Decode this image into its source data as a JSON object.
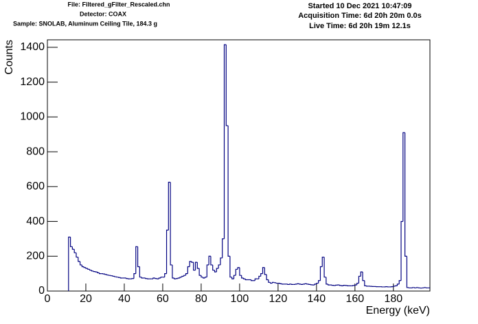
{
  "chart_data": {
    "type": "histogram",
    "header_left": [
      "File: Filtered_gFilter_Rescaled.chn",
      "Detector: COAX",
      "Sample: SNOLAB, Aluminum Ceiling Tile, 184.3 g"
    ],
    "header_right": [
      "Started 10 Dec 2021 10:47:09",
      "Acquisition Time: 6d 20h 20m 0.0s",
      "Live Time: 6d 20h 19m 12.1s"
    ],
    "xlabel": "Energy (keV)",
    "ylabel": "Counts",
    "color": "#000080",
    "xlim": [
      0,
      199
    ],
    "ylim": [
      0,
      1443
    ],
    "xticks": [
      0,
      20,
      40,
      60,
      80,
      100,
      120,
      140,
      160,
      180
    ],
    "yticks": [
      0,
      200,
      400,
      600,
      800,
      1000,
      1200,
      1400
    ],
    "bins": [
      11,
      12,
      13,
      14,
      15,
      16,
      17,
      18,
      19,
      20,
      21,
      22,
      23,
      24,
      25,
      26,
      27,
      28,
      29,
      30,
      31,
      32,
      33,
      34,
      35,
      36,
      37,
      38,
      39,
      40,
      41,
      42,
      43,
      44,
      45,
      46,
      47,
      48,
      49,
      50,
      51,
      52,
      53,
      54,
      55,
      56,
      57,
      58,
      59,
      60,
      61,
      62,
      63,
      64,
      65,
      66,
      67,
      68,
      69,
      70,
      71,
      72,
      73,
      74,
      75,
      76,
      77,
      78,
      79,
      80,
      81,
      82,
      83,
      84,
      85,
      86,
      87,
      88,
      89,
      90,
      91,
      92,
      93,
      94,
      95,
      96,
      97,
      98,
      99,
      100,
      101,
      102,
      103,
      104,
      105,
      106,
      107,
      108,
      109,
      110,
      111,
      112,
      113,
      114,
      115,
      116,
      117,
      118,
      119,
      120,
      121,
      122,
      123,
      124,
      125,
      126,
      127,
      128,
      129,
      130,
      131,
      132,
      133,
      134,
      135,
      136,
      137,
      138,
      139,
      140,
      141,
      142,
      143,
      144,
      145,
      146,
      147,
      148,
      149,
      150,
      151,
      152,
      153,
      154,
      155,
      156,
      157,
      158,
      159,
      160,
      161,
      162,
      163,
      164,
      165,
      166,
      167,
      168,
      169,
      170,
      171,
      172,
      173,
      174,
      175,
      176,
      177,
      178,
      179,
      180,
      181,
      182,
      183,
      184,
      185,
      186,
      187,
      188,
      189,
      190,
      191,
      192,
      193,
      194,
      195,
      196,
      197,
      198,
      199
    ],
    "values": [
      310,
      255,
      240,
      220,
      195,
      170,
      150,
      140,
      135,
      130,
      125,
      120,
      115,
      112,
      110,
      105,
      100,
      100,
      98,
      95,
      92,
      90,
      88,
      85,
      82,
      80,
      78,
      75,
      75,
      75,
      72,
      70,
      70,
      72,
      100,
      255,
      140,
      80,
      75,
      75,
      72,
      70,
      70,
      70,
      75,
      72,
      70,
      75,
      80,
      80,
      100,
      350,
      625,
      150,
      75,
      70,
      72,
      75,
      80,
      85,
      90,
      100,
      140,
      170,
      165,
      120,
      165,
      130,
      90,
      80,
      75,
      80,
      150,
      200,
      150,
      120,
      110,
      130,
      150,
      190,
      300,
      1415,
      950,
      200,
      80,
      70,
      90,
      125,
      135,
      90,
      75,
      70,
      65,
      65,
      65,
      60,
      60,
      70,
      70,
      85,
      100,
      135,
      95,
      65,
      50,
      45,
      50,
      48,
      45,
      45,
      42,
      40,
      40,
      40,
      38,
      40,
      38,
      38,
      40,
      42,
      40,
      38,
      40,
      42,
      40,
      38,
      36,
      35,
      40,
      45,
      60,
      140,
      195,
      80,
      40,
      35,
      35,
      33,
      32,
      34,
      35,
      32,
      30,
      33,
      32,
      30,
      30,
      30,
      32,
      35,
      45,
      85,
      110,
      60,
      30,
      28,
      28,
      27,
      26,
      26,
      25,
      25,
      25,
      24,
      24,
      25,
      24,
      24,
      25,
      28,
      30,
      40,
      60,
      400,
      910,
      200,
      20,
      18,
      18,
      20,
      18,
      20,
      18,
      17,
      18,
      20,
      18,
      18
    ]
  }
}
